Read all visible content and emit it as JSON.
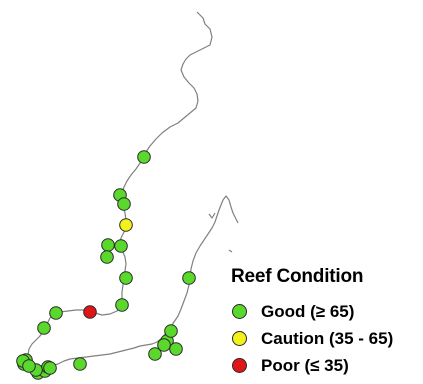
{
  "colors": {
    "good": "#5ad92c",
    "caution": "#f2f21a",
    "poor": "#e01616",
    "coastline": "#808080",
    "outline": "#2a2a2a"
  },
  "legend": {
    "title": "Reef Condition",
    "items": [
      {
        "key": "good",
        "label": "Good (≥ 65)"
      },
      {
        "key": "caution",
        "label": "Caution (35 - 65)"
      },
      {
        "key": "poor",
        "label": "Poor (≤ 35)"
      }
    ]
  },
  "sites": [
    {
      "condition": "good"
    },
    {
      "condition": "good"
    },
    {
      "condition": "good"
    },
    {
      "condition": "caution"
    },
    {
      "condition": "good"
    },
    {
      "condition": "good"
    },
    {
      "condition": "good"
    },
    {
      "condition": "good"
    },
    {
      "condition": "good"
    },
    {
      "condition": "good"
    },
    {
      "condition": "poor"
    },
    {
      "condition": "good"
    },
    {
      "condition": "good"
    },
    {
      "condition": "good"
    },
    {
      "condition": "good"
    },
    {
      "condition": "good"
    },
    {
      "condition": "good"
    },
    {
      "condition": "good"
    },
    {
      "condition": "good"
    },
    {
      "condition": "good"
    },
    {
      "condition": "good"
    },
    {
      "condition": "good"
    },
    {
      "condition": "good"
    },
    {
      "condition": "good"
    },
    {
      "condition": "good"
    },
    {
      "condition": "good"
    },
    {
      "condition": "good"
    },
    {
      "condition": "good"
    }
  ]
}
